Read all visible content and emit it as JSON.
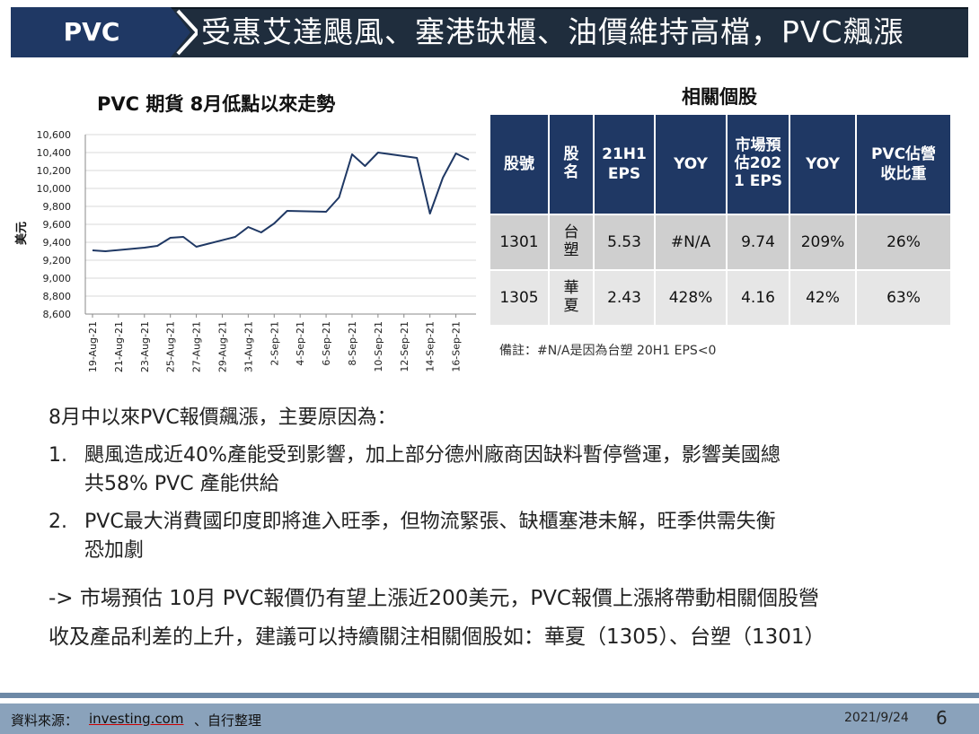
{
  "header": {
    "tag": "PVC",
    "title": "受惠艾達颶風、塞港缺櫃、油價維持高檔，PVC飆漲"
  },
  "chart_data": {
    "type": "line",
    "title": "PVC 期貨 8月低點以來走勢",
    "ylabel": "美元",
    "xlabel": "",
    "ylim": [
      8600,
      10600
    ],
    "yticks": [
      "10,600",
      "10,400",
      "10,200",
      "10,000",
      "9,800",
      "9,600",
      "9,400",
      "9,200",
      "9,000",
      "8,800",
      "8,600"
    ],
    "ytick_values": [
      10600,
      10400,
      10200,
      10000,
      9800,
      9600,
      9400,
      9200,
      9000,
      8800,
      8600
    ],
    "xtick_labels": [
      "19-Aug-21",
      "21-Aug-21",
      "23-Aug-21",
      "25-Aug-21",
      "27-Aug-21",
      "29-Aug-21",
      "31-Aug-21",
      "2-Sep-21",
      "4-Sep-21",
      "6-Sep-21",
      "8-Sep-21",
      "10-Sep-21",
      "12-Sep-21",
      "14-Sep-21",
      "16-Sep-21"
    ],
    "grid": true,
    "line_color": "#1f3864",
    "series": [
      {
        "name": "",
        "points": [
          [
            "19-Aug-21",
            9310
          ],
          [
            "20-Aug-21",
            9300
          ],
          [
            "23-Aug-21",
            9340
          ],
          [
            "24-Aug-21",
            9360
          ],
          [
            "25-Aug-21",
            9450
          ],
          [
            "26-Aug-21",
            9460
          ],
          [
            "27-Aug-21",
            9350
          ],
          [
            "30-Aug-21",
            9460
          ],
          [
            "31-Aug-21",
            9570
          ],
          [
            "1-Sep-21",
            9510
          ],
          [
            "2-Sep-21",
            9610
          ],
          [
            "3-Sep-21",
            9750
          ],
          [
            "6-Sep-21",
            9740
          ],
          [
            "7-Sep-21",
            9900
          ],
          [
            "8-Sep-21",
            10380
          ],
          [
            "9-Sep-21",
            10250
          ],
          [
            "10-Sep-21",
            10400
          ],
          [
            "13-Sep-21",
            10340
          ],
          [
            "14-Sep-21",
            9720
          ],
          [
            "15-Sep-21",
            10120
          ],
          [
            "16-Sep-21",
            10390
          ],
          [
            "17-Sep-21",
            10320
          ]
        ]
      }
    ]
  },
  "table": {
    "title": "相關個股",
    "headers": [
      "股號",
      "股名",
      "21H1 EPS",
      "YOY",
      "市場預估2021 EPS",
      "YOY",
      "PVC佔營收比重"
    ],
    "rows": [
      [
        "1301",
        "台塑",
        "5.53",
        "#N/A",
        "9.74",
        "209%",
        "26%"
      ],
      [
        "1305",
        "華夏",
        "2.43",
        "428%",
        "4.16",
        "42%",
        "63%"
      ]
    ],
    "note": "備註：#N/A是因為台塑 20H1 EPS<0"
  },
  "body": {
    "intro": "8月中以來PVC報價飆漲，主要原因為：",
    "points": [
      {
        "num": "1.",
        "line1": "颶風造成近40%產能受到影響，加上部分德州廠商因缺料暫停營運，影響美國總",
        "line2": "共58% PVC 產能供給"
      },
      {
        "num": "2.",
        "line1": "PVC最大消費國印度即將進入旺季，但物流緊張、缺櫃塞港未解，旺季供需失衡",
        "line2": "恐加劇"
      }
    ],
    "conclusion_line1": "-> 市場預估 10月 PVC報價仍有望上漲近200美元，PVC報價上漲將帶動相關個股營",
    "conclusion_line2": "收及產品利差的上升，建議可以持續關注相關個股如：華夏（1305）、台塑（1301）"
  },
  "footer": {
    "source_label": "資料來源：",
    "source_link": "investing.com",
    "source_rest": "、自行整理",
    "date": "2021/9/24",
    "page": "6"
  }
}
